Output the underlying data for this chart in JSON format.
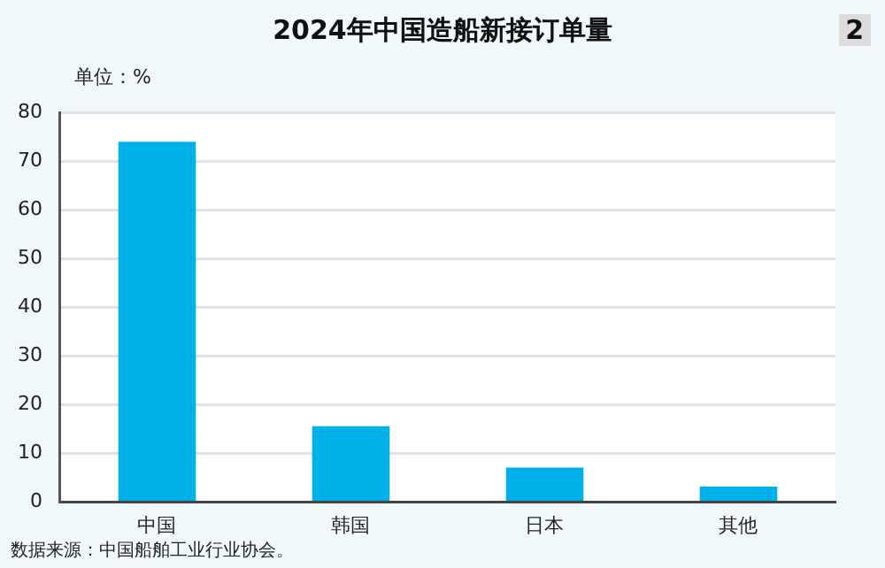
{
  "chart_data": {
    "type": "bar",
    "title": "2024年中国造船新接订单量",
    "ylabel": "单位：%",
    "categories": [
      "中国",
      "韩国",
      "日本",
      "其他"
    ],
    "values": [
      74,
      15.6,
      7.1,
      3.2
    ],
    "color": "#00b0e8",
    "ylim": [
      0,
      80
    ],
    "yticks": [
      0,
      10,
      20,
      30,
      40,
      50,
      60,
      70,
      80
    ],
    "grid": "y",
    "annotations": [
      "2",
      "数据来源：中国船舶工业行业协会。"
    ]
  }
}
